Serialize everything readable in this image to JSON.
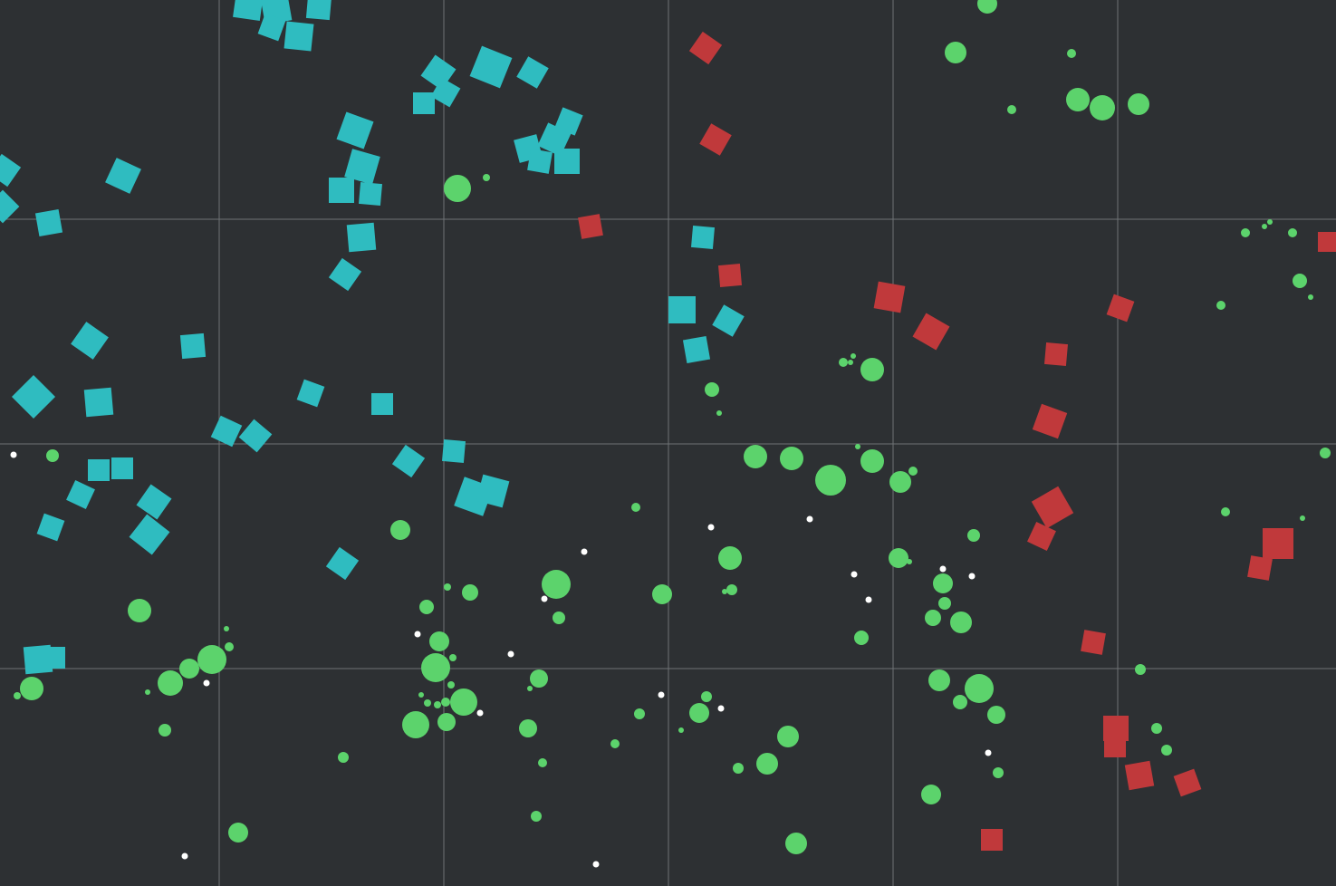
{
  "game": {
    "view": "top-down arena",
    "colors": {
      "background": "#2d3033",
      "grid_line": "#6f7276",
      "team_cyan": "#2fbcc0",
      "team_red": "#c0393b",
      "food_green": "#5cd36c",
      "pellet_white": "#ffffff"
    },
    "icons": {
      "cyan_unit": "square-icon",
      "red_unit": "square-icon",
      "food": "circle-icon",
      "pellet": "dot-icon"
    }
  }
}
